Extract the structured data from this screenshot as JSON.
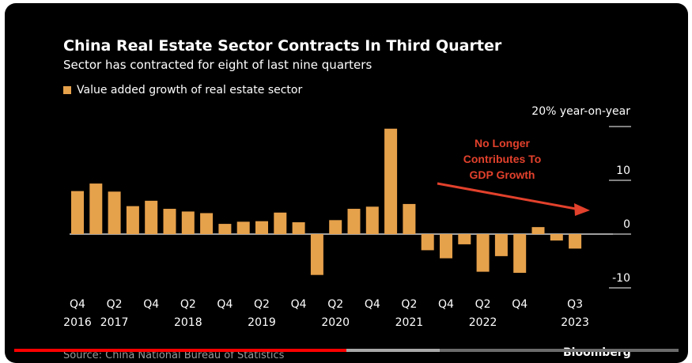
{
  "title": "China Real Estate Sector Contracts In Third Quarter",
  "subtitle": "Sector has contracted for eight of last nine quarters",
  "legend_label": "Value added growth of real estate sector",
  "y_title": "20% year-on-year",
  "annotation": [
    "No Longer",
    "Contributes To",
    "GDP Growth"
  ],
  "source": "Source: China National Bureau of Statistics",
  "brand": "Bloomberg",
  "colors": {
    "bar": "#e6a14b",
    "annotation": "#e2412c",
    "background": "#000000",
    "progress": "#ff0000"
  },
  "video_progress": {
    "played_fraction": 0.5,
    "buffered_fraction": 0.64
  },
  "chart_data": {
    "type": "bar",
    "categories": [
      "2016Q4",
      "2017Q1",
      "2017Q2",
      "2017Q3",
      "2017Q4",
      "2018Q1",
      "2018Q2",
      "2018Q3",
      "2018Q4",
      "2019Q1",
      "2019Q2",
      "2019Q3",
      "2019Q4",
      "2020Q1",
      "2020Q2",
      "2020Q3",
      "2020Q4",
      "2021Q1",
      "2021Q2",
      "2021Q3",
      "2021Q4",
      "2022Q1",
      "2022Q2",
      "2022Q3",
      "2022Q4",
      "2023Q1",
      "2023Q2",
      "2023Q3"
    ],
    "values": [
      8.0,
      9.4,
      7.9,
      5.2,
      6.2,
      4.7,
      4.2,
      3.9,
      1.9,
      2.3,
      2.4,
      4.0,
      2.2,
      -7.6,
      2.6,
      4.7,
      5.1,
      19.6,
      5.6,
      -3.0,
      -4.5,
      -1.9,
      -7.0,
      -4.1,
      -7.2,
      1.3,
      -1.2,
      -2.7
    ],
    "x_tick_labels": [
      {
        "index": 0,
        "top": "Q4",
        "bottom": "2016"
      },
      {
        "index": 2,
        "top": "Q2",
        "bottom": "2017"
      },
      {
        "index": 4,
        "top": "Q4",
        "bottom": ""
      },
      {
        "index": 6,
        "top": "Q2",
        "bottom": "2018"
      },
      {
        "index": 8,
        "top": "Q4",
        "bottom": ""
      },
      {
        "index": 10,
        "top": "Q2",
        "bottom": "2019"
      },
      {
        "index": 12,
        "top": "Q4",
        "bottom": ""
      },
      {
        "index": 14,
        "top": "Q2",
        "bottom": "2020"
      },
      {
        "index": 16,
        "top": "Q4",
        "bottom": ""
      },
      {
        "index": 18,
        "top": "Q2",
        "bottom": "2021"
      },
      {
        "index": 20,
        "top": "Q4",
        "bottom": ""
      },
      {
        "index": 22,
        "top": "Q2",
        "bottom": "2022"
      },
      {
        "index": 24,
        "top": "Q4",
        "bottom": ""
      },
      {
        "index": 27,
        "top": "Q3",
        "bottom": "2023"
      }
    ],
    "y_ticks": [
      {
        "value": 20,
        "label": ""
      },
      {
        "value": 10,
        "label": "10"
      },
      {
        "value": 0,
        "label": "0"
      },
      {
        "value": -10,
        "label": "-10"
      }
    ],
    "ylim": [
      -10,
      20
    ],
    "legend": "top-left",
    "grid": false
  }
}
